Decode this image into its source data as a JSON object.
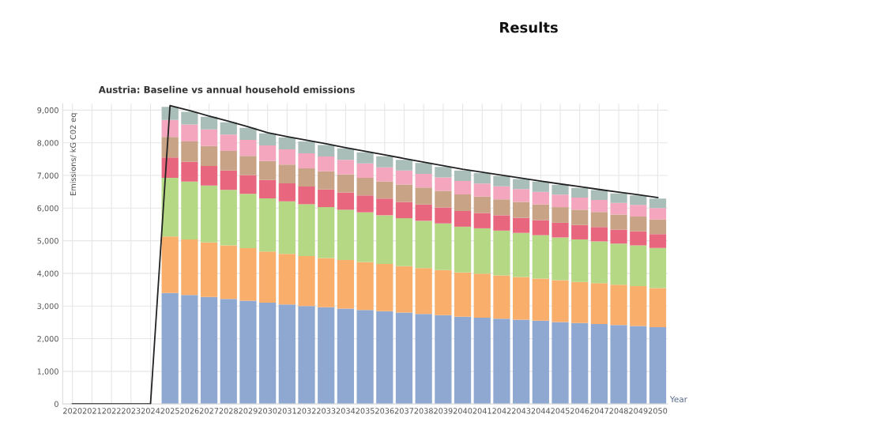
{
  "chart_data": {
    "type": "bar",
    "stacked": true,
    "title": "Results",
    "subtitle": "Austria: Baseline vs annual household emissions",
    "ylabel": "Emissions/ kG C02 eq",
    "xlabel": "Year",
    "categories": [
      "2020",
      "2021",
      "2022",
      "2023",
      "2024",
      "2025",
      "2026",
      "2027",
      "2028",
      "2029",
      "2030",
      "2031",
      "2032",
      "2033",
      "2034",
      "2035",
      "2036",
      "2037",
      "2038",
      "2039",
      "2040",
      "2041",
      "2042",
      "2043",
      "2044",
      "2045",
      "2046",
      "2047",
      "2048",
      "2049",
      "2050"
    ],
    "ylim": [
      0,
      9200
    ],
    "yticks": [
      {
        "value": 0,
        "label": "0"
      },
      {
        "value": 1000,
        "label": "1,000"
      },
      {
        "value": 2000,
        "label": "2,000"
      },
      {
        "value": 3000,
        "label": "3,000"
      },
      {
        "value": 4000,
        "label": "4,000"
      },
      {
        "value": 5000,
        "label": "5,000"
      },
      {
        "value": 6000,
        "label": "6,000"
      },
      {
        "value": 7000,
        "label": "7,000"
      },
      {
        "value": 8000,
        "label": "8,000"
      },
      {
        "value": 9000,
        "label": "9,000"
      }
    ],
    "grid": true,
    "series": [
      {
        "color": "#8fa8d2",
        "values": [
          null,
          null,
          null,
          null,
          null,
          3400,
          3340,
          3280,
          3220,
          3160,
          3100,
          3050,
          3000,
          2960,
          2920,
          2880,
          2840,
          2800,
          2760,
          2720,
          2670,
          2640,
          2610,
          2580,
          2550,
          2510,
          2480,
          2450,
          2420,
          2390,
          2350
        ]
      },
      {
        "color": "#f9ae6b",
        "values": [
          null,
          null,
          null,
          null,
          null,
          1730,
          1700,
          1670,
          1640,
          1610,
          1570,
          1550,
          1530,
          1510,
          1490,
          1470,
          1450,
          1420,
          1400,
          1380,
          1360,
          1350,
          1330,
          1310,
          1290,
          1280,
          1260,
          1250,
          1230,
          1220,
          1200
        ]
      },
      {
        "color": "#b5d885",
        "values": [
          null,
          null,
          null,
          null,
          null,
          1800,
          1770,
          1740,
          1700,
          1670,
          1630,
          1610,
          1590,
          1560,
          1540,
          1520,
          1490,
          1470,
          1450,
          1430,
          1400,
          1390,
          1370,
          1350,
          1330,
          1310,
          1300,
          1280,
          1260,
          1250,
          1230
        ]
      },
      {
        "color": "#e8677f",
        "values": [
          null,
          null,
          null,
          null,
          null,
          620,
          610,
          600,
          590,
          570,
          560,
          550,
          540,
          540,
          530,
          520,
          510,
          500,
          500,
          490,
          480,
          470,
          470,
          460,
          460,
          450,
          440,
          440,
          430,
          430,
          420
        ]
      },
      {
        "color": "#c8a385",
        "values": [
          null,
          null,
          null,
          null,
          null,
          630,
          620,
          610,
          600,
          590,
          580,
          570,
          560,
          560,
          550,
          540,
          530,
          530,
          520,
          510,
          510,
          500,
          490,
          490,
          480,
          480,
          470,
          460,
          460,
          450,
          450
        ]
      },
      {
        "color": "#f4a6be",
        "values": [
          null,
          null,
          null,
          null,
          null,
          520,
          520,
          510,
          500,
          490,
          480,
          470,
          460,
          450,
          450,
          440,
          430,
          430,
          420,
          410,
          410,
          400,
          400,
          390,
          390,
          380,
          370,
          370,
          360,
          360,
          350
        ]
      },
      {
        "color": "#a9bdb9",
        "values": [
          null,
          null,
          null,
          null,
          null,
          400,
          390,
          390,
          380,
          370,
          370,
          360,
          360,
          350,
          350,
          340,
          340,
          330,
          330,
          320,
          320,
          320,
          310,
          310,
          310,
          300,
          300,
          300,
          290,
          290,
          290
        ]
      },
      {
        "type": "line",
        "color": "#222222",
        "marker": "none",
        "values": [
          0,
          0,
          0,
          0,
          0,
          9140,
          8990,
          8820,
          8660,
          8490,
          8310,
          8190,
          8080,
          7970,
          7850,
          7740,
          7630,
          7520,
          7410,
          7300,
          7190,
          7100,
          7010,
          6920,
          6830,
          6740,
          6660,
          6570,
          6490,
          6410,
          6320
        ]
      }
    ]
  }
}
